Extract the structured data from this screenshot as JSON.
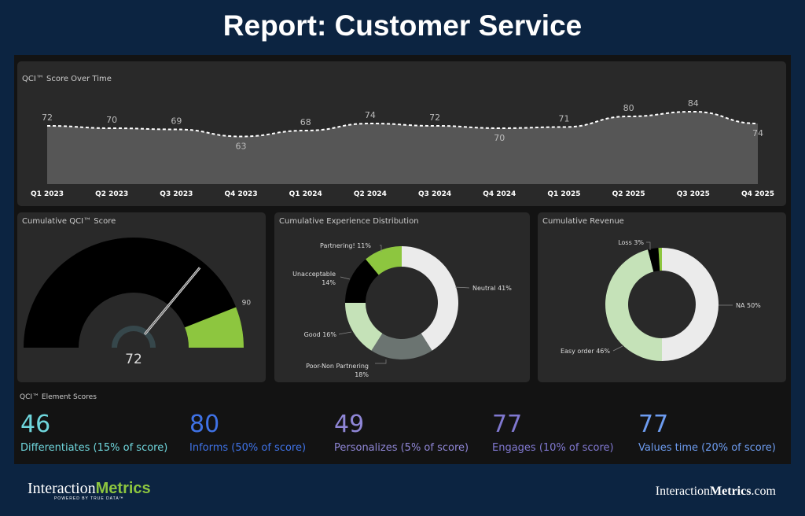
{
  "page_title": "Report: Customer Service",
  "line_chart": {
    "title": "QCI™ Score Over Time",
    "categories": [
      "Q1 2023",
      "Q2 2023",
      "Q3 2023",
      "Q4 2023",
      "Q1 2024",
      "Q2 2024",
      "Q3 2024",
      "Q4 2024",
      "Q1 2025",
      "Q2 2025",
      "Q3 2025",
      "Q4 2025"
    ],
    "values": [
      72,
      70,
      69,
      63,
      68,
      74,
      72,
      70,
      71,
      80,
      84,
      74
    ]
  },
  "gauge": {
    "title": "Cumulative QCI™ Score",
    "value": "72",
    "value_num": 72,
    "target": "90",
    "target_num": 90,
    "min": 0,
    "max": 100,
    "colors": {
      "band": "#000000",
      "target": "#8dc63f",
      "value_arc": "#36474b"
    }
  },
  "experience": {
    "title": "Cumulative Experience Distribution",
    "slices": [
      {
        "label": "Neutral 41%",
        "value": 41,
        "color": "#ebebeb"
      },
      {
        "label": "Poor-Non Partnering 18%",
        "value": 18,
        "color": "#6b7471"
      },
      {
        "label": "Good 16%",
        "value": 16,
        "color": "#c5e2b8"
      },
      {
        "label": "Unacceptable 14%",
        "value": 14,
        "color": "#000000"
      },
      {
        "label": "Partnering! 11%",
        "value": 11,
        "color": "#8dc63f"
      }
    ]
  },
  "revenue": {
    "title": "Cumulative Revenue",
    "slices": [
      {
        "label": "NA 50%",
        "value": 50,
        "color": "#ebebeb"
      },
      {
        "label": "Easy order 46%",
        "value": 46,
        "color": "#c5e2b8"
      },
      {
        "label": "Loss 3%",
        "value": 3,
        "color": "#000000"
      },
      {
        "label": "",
        "value": 1,
        "color": "#8dc63f"
      }
    ]
  },
  "element_scores": {
    "title": "QCI™ Element Scores",
    "items": [
      {
        "value": "46",
        "label": "Differentiates (15% of score)",
        "color": "#6fd6dc"
      },
      {
        "value": "80",
        "label": "Informs (50% of score)",
        "color": "#3f72e6"
      },
      {
        "value": "49",
        "label": "Personalizes (5% of score)",
        "color": "#8f86d6"
      },
      {
        "value": "77",
        "label": "Engages (10% of score)",
        "color": "#8078d0"
      },
      {
        "value": "77",
        "label": "Values time (20% of score)",
        "color": "#6d9cf0"
      }
    ]
  },
  "footer": {
    "logo_a": "Interaction",
    "logo_b": "Metrics",
    "logo_tag": "POWERED BY TRUE DATA™",
    "url_a": "Interaction",
    "url_b": "Metrics",
    "url_c": ".com"
  }
}
